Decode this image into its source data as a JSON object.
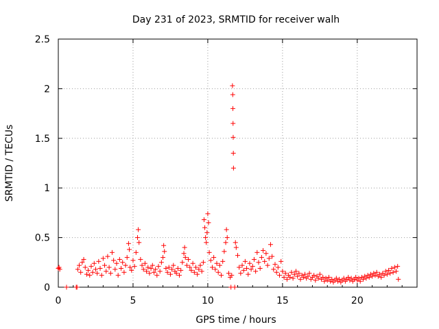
{
  "chart_data": {
    "type": "scatter",
    "title": "Day 231 of 2023, SRMTID for receiver walh",
    "xlabel": "GPS time / hours",
    "ylabel": "SRMTID / TECUs",
    "xlim": [
      0,
      24
    ],
    "ylim": [
      0,
      2.5
    ],
    "xticks": [
      0,
      5,
      10,
      15,
      20
    ],
    "yticks": [
      0,
      0.5,
      1,
      1.5,
      2,
      2.5
    ],
    "ytick_labels": [
      "0",
      "0.5",
      "1",
      "1.5",
      "2",
      "2.5"
    ],
    "grid": true,
    "marker": "+",
    "marker_color": "#ff0000",
    "series": [
      {
        "name": "SRMTID",
        "points": [
          [
            0.0,
            0.19
          ],
          [
            0.05,
            0.2
          ],
          [
            0.1,
            0.18
          ],
          [
            0.55,
            0.0
          ],
          [
            1.2,
            0.0
          ],
          [
            1.25,
            0.0
          ],
          [
            1.3,
            0.18
          ],
          [
            1.4,
            0.22
          ],
          [
            1.5,
            0.15
          ],
          [
            1.6,
            0.25
          ],
          [
            1.7,
            0.28
          ],
          [
            1.8,
            0.2
          ],
          [
            1.9,
            0.13
          ],
          [
            2.0,
            0.17
          ],
          [
            2.1,
            0.12
          ],
          [
            2.2,
            0.21
          ],
          [
            2.3,
            0.15
          ],
          [
            2.4,
            0.24
          ],
          [
            2.5,
            0.18
          ],
          [
            2.6,
            0.14
          ],
          [
            2.7,
            0.26
          ],
          [
            2.8,
            0.19
          ],
          [
            2.9,
            0.12
          ],
          [
            3.0,
            0.29
          ],
          [
            3.1,
            0.22
          ],
          [
            3.2,
            0.16
          ],
          [
            3.3,
            0.31
          ],
          [
            3.4,
            0.2
          ],
          [
            3.5,
            0.14
          ],
          [
            3.6,
            0.35
          ],
          [
            3.7,
            0.27
          ],
          [
            3.8,
            0.18
          ],
          [
            3.9,
            0.24
          ],
          [
            4.0,
            0.12
          ],
          [
            4.1,
            0.28
          ],
          [
            4.2,
            0.19
          ],
          [
            4.3,
            0.25
          ],
          [
            4.4,
            0.15
          ],
          [
            4.5,
            0.22
          ],
          [
            4.6,
            0.3
          ],
          [
            4.7,
            0.44
          ],
          [
            4.75,
            0.38
          ],
          [
            4.8,
            0.2
          ],
          [
            4.9,
            0.17
          ],
          [
            5.0,
            0.27
          ],
          [
            5.1,
            0.21
          ],
          [
            5.2,
            0.35
          ],
          [
            5.3,
            0.5
          ],
          [
            5.35,
            0.58
          ],
          [
            5.4,
            0.45
          ],
          [
            5.5,
            0.28
          ],
          [
            5.6,
            0.22
          ],
          [
            5.7,
            0.18
          ],
          [
            5.8,
            0.24
          ],
          [
            5.9,
            0.16
          ],
          [
            6.0,
            0.2
          ],
          [
            6.1,
            0.14
          ],
          [
            6.2,
            0.19
          ],
          [
            6.3,
            0.22
          ],
          [
            6.4,
            0.15
          ],
          [
            6.5,
            0.18
          ],
          [
            6.6,
            0.12
          ],
          [
            6.7,
            0.21
          ],
          [
            6.8,
            0.16
          ],
          [
            6.9,
            0.25
          ],
          [
            7.0,
            0.3
          ],
          [
            7.05,
            0.42
          ],
          [
            7.1,
            0.36
          ],
          [
            7.2,
            0.19
          ],
          [
            7.3,
            0.15
          ],
          [
            7.4,
            0.2
          ],
          [
            7.5,
            0.13
          ],
          [
            7.6,
            0.18
          ],
          [
            7.7,
            0.22
          ],
          [
            7.8,
            0.16
          ],
          [
            7.9,
            0.14
          ],
          [
            8.0,
            0.19
          ],
          [
            8.1,
            0.12
          ],
          [
            8.2,
            0.17
          ],
          [
            8.3,
            0.25
          ],
          [
            8.4,
            0.34
          ],
          [
            8.45,
            0.4
          ],
          [
            8.5,
            0.3
          ],
          [
            8.6,
            0.22
          ],
          [
            8.7,
            0.28
          ],
          [
            8.8,
            0.2
          ],
          [
            8.9,
            0.17
          ],
          [
            9.0,
            0.24
          ],
          [
            9.1,
            0.15
          ],
          [
            9.2,
            0.2
          ],
          [
            9.3,
            0.13
          ],
          [
            9.4,
            0.18
          ],
          [
            9.5,
            0.22
          ],
          [
            9.6,
            0.16
          ],
          [
            9.7,
            0.25
          ],
          [
            9.75,
            0.68
          ],
          [
            9.8,
            0.6
          ],
          [
            9.85,
            0.5
          ],
          [
            9.9,
            0.45
          ],
          [
            9.95,
            0.55
          ],
          [
            10.0,
            0.74
          ],
          [
            10.05,
            0.65
          ],
          [
            10.1,
            0.35
          ],
          [
            10.2,
            0.27
          ],
          [
            10.3,
            0.2
          ],
          [
            10.4,
            0.3
          ],
          [
            10.5,
            0.18
          ],
          [
            10.6,
            0.24
          ],
          [
            10.7,
            0.15
          ],
          [
            10.8,
            0.22
          ],
          [
            10.9,
            0.12
          ],
          [
            11.0,
            0.26
          ],
          [
            11.1,
            0.36
          ],
          [
            11.2,
            0.45
          ],
          [
            11.25,
            0.58
          ],
          [
            11.3,
            0.5
          ],
          [
            11.4,
            0.14
          ],
          [
            11.5,
            0.1
          ],
          [
            11.55,
            0.0
          ],
          [
            11.6,
            0.12
          ],
          [
            11.65,
            2.03
          ],
          [
            11.67,
            1.94
          ],
          [
            11.68,
            1.8
          ],
          [
            11.69,
            1.65
          ],
          [
            11.7,
            1.51
          ],
          [
            11.71,
            1.35
          ],
          [
            11.72,
            1.2
          ],
          [
            11.8,
            0.0
          ],
          [
            11.85,
            0.45
          ],
          [
            11.9,
            0.4
          ],
          [
            12.0,
            0.32
          ],
          [
            12.1,
            0.2
          ],
          [
            12.2,
            0.14
          ],
          [
            12.3,
            0.22
          ],
          [
            12.4,
            0.17
          ],
          [
            12.5,
            0.26
          ],
          [
            12.6,
            0.19
          ],
          [
            12.7,
            0.13
          ],
          [
            12.8,
            0.24
          ],
          [
            12.9,
            0.18
          ],
          [
            13.0,
            0.21
          ],
          [
            13.1,
            0.28
          ],
          [
            13.2,
            0.16
          ],
          [
            13.3,
            0.35
          ],
          [
            13.4,
            0.25
          ],
          [
            13.5,
            0.19
          ],
          [
            13.6,
            0.3
          ],
          [
            13.7,
            0.37
          ],
          [
            13.8,
            0.26
          ],
          [
            13.9,
            0.34
          ],
          [
            14.0,
            0.22
          ],
          [
            14.1,
            0.29
          ],
          [
            14.2,
            0.43
          ],
          [
            14.3,
            0.31
          ],
          [
            14.4,
            0.18
          ],
          [
            14.5,
            0.23
          ],
          [
            14.6,
            0.15
          ],
          [
            14.7,
            0.2
          ],
          [
            14.8,
            0.12
          ],
          [
            14.9,
            0.26
          ],
          [
            15.0,
            0.16
          ],
          [
            15.1,
            0.1
          ],
          [
            15.2,
            0.14
          ],
          [
            15.3,
            0.08
          ],
          [
            15.4,
            0.12
          ],
          [
            15.5,
            0.1
          ],
          [
            15.6,
            0.15
          ],
          [
            15.7,
            0.09
          ],
          [
            15.8,
            0.13
          ],
          [
            15.9,
            0.16
          ],
          [
            16.0,
            0.11
          ],
          [
            16.1,
            0.14
          ],
          [
            16.2,
            0.08
          ],
          [
            16.3,
            0.12
          ],
          [
            16.4,
            0.1
          ],
          [
            16.5,
            0.13
          ],
          [
            16.6,
            0.09
          ],
          [
            16.7,
            0.11
          ],
          [
            16.8,
            0.14
          ],
          [
            16.9,
            0.08
          ],
          [
            17.0,
            0.1
          ],
          [
            17.1,
            0.12
          ],
          [
            17.2,
            0.07
          ],
          [
            17.3,
            0.11
          ],
          [
            17.4,
            0.09
          ],
          [
            17.5,
            0.13
          ],
          [
            17.6,
            0.08
          ],
          [
            17.7,
            0.1
          ],
          [
            17.8,
            0.06
          ],
          [
            17.9,
            0.09
          ],
          [
            18.0,
            0.07
          ],
          [
            18.1,
            0.1
          ],
          [
            18.2,
            0.06
          ],
          [
            18.3,
            0.08
          ],
          [
            18.4,
            0.05
          ],
          [
            18.5,
            0.07
          ],
          [
            18.6,
            0.09
          ],
          [
            18.7,
            0.06
          ],
          [
            18.8,
            0.08
          ],
          [
            18.9,
            0.05
          ],
          [
            19.0,
            0.07
          ],
          [
            19.1,
            0.09
          ],
          [
            19.2,
            0.06
          ],
          [
            19.3,
            0.08
          ],
          [
            19.4,
            0.1
          ],
          [
            19.5,
            0.07
          ],
          [
            19.6,
            0.09
          ],
          [
            19.7,
            0.06
          ],
          [
            19.8,
            0.08
          ],
          [
            19.9,
            0.1
          ],
          [
            20.0,
            0.07
          ],
          [
            20.1,
            0.09
          ],
          [
            20.2,
            0.06
          ],
          [
            20.3,
            0.1
          ],
          [
            20.4,
            0.08
          ],
          [
            20.5,
            0.11
          ],
          [
            20.6,
            0.09
          ],
          [
            20.7,
            0.12
          ],
          [
            20.8,
            0.1
          ],
          [
            20.9,
            0.13
          ],
          [
            21.0,
            0.11
          ],
          [
            21.1,
            0.14
          ],
          [
            21.2,
            0.12
          ],
          [
            21.3,
            0.15
          ],
          [
            21.4,
            0.11
          ],
          [
            21.5,
            0.13
          ],
          [
            21.6,
            0.1
          ],
          [
            21.7,
            0.14
          ],
          [
            21.8,
            0.12
          ],
          [
            21.9,
            0.16
          ],
          [
            22.0,
            0.13
          ],
          [
            22.1,
            0.17
          ],
          [
            22.2,
            0.14
          ],
          [
            22.3,
            0.19
          ],
          [
            22.4,
            0.15
          ],
          [
            22.5,
            0.2
          ],
          [
            22.6,
            0.16
          ],
          [
            22.7,
            0.21
          ],
          [
            22.75,
            0.08
          ]
        ]
      }
    ]
  }
}
